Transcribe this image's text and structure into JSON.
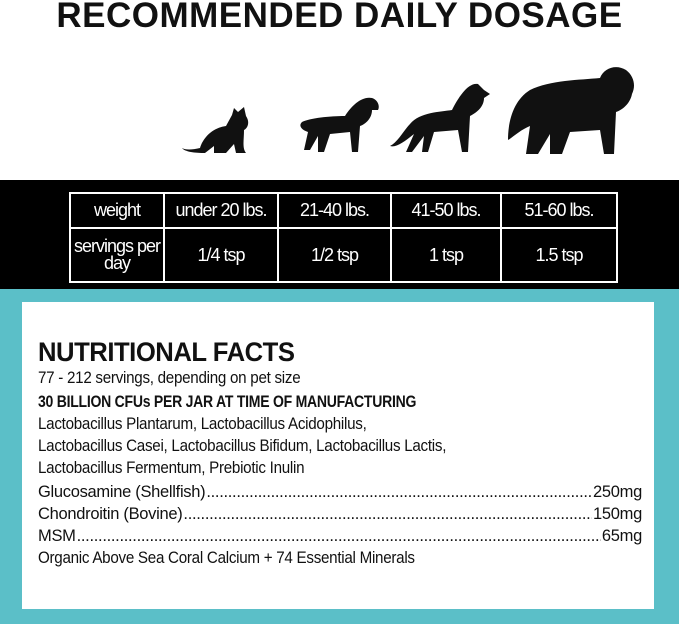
{
  "title": "RECOMMENDED DAILY DOSAGE",
  "animals": [
    "cat-icon",
    "small-dog-icon",
    "medium-dog-icon",
    "large-dog-icon"
  ],
  "dosage_table": {
    "row_headers": [
      "weight",
      "servings per day"
    ],
    "weights": [
      "under 20 lbs.",
      "21-40 lbs.",
      "41-50 lbs.",
      "51-60 lbs."
    ],
    "servings": [
      "1/4 tsp",
      "1/2 tsp",
      "1 tsp",
      "1.5 tsp"
    ]
  },
  "nutrition": {
    "heading": "NUTRITIONAL FACTS",
    "servings_note": "77 - 212 servings, depending on pet size",
    "cfu_line": "30 BILLION CFUs PER JAR AT TIME OF MANUFACTURING",
    "strains": [
      "Lactobacillus  Plantarum, Lactobacillus Acidophilus,",
      "Lactobacillus Casei, Lactobacillus Bifidum, Lactobacillus Lactis,",
      "Lactobacillus Fermentum, Prebiotic Inulin"
    ],
    "ingredients": [
      {
        "name": "Glucosamine (Shellfish)",
        "amount": "250mg"
      },
      {
        "name": "Chondroitin (Bovine)",
        "amount": "150mg"
      },
      {
        "name": "MSM",
        "amount": "65mg"
      }
    ],
    "footer": "Organic Above Sea Coral Calcium + 74 Essential Minerals"
  },
  "colors": {
    "teal": "#5bbfc8",
    "band": "#000000"
  }
}
